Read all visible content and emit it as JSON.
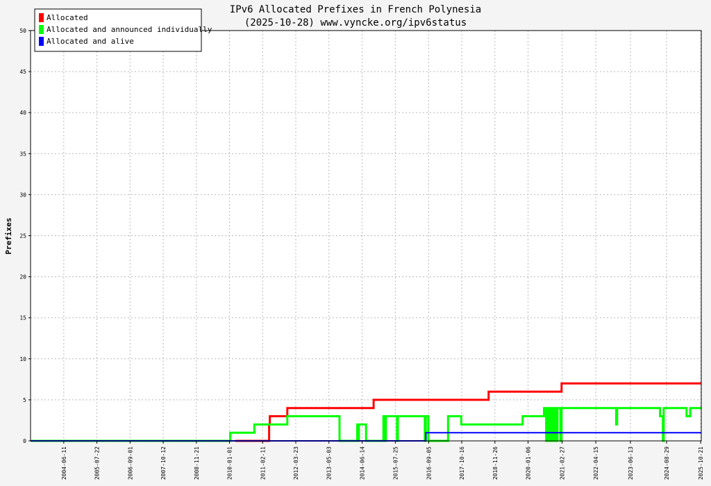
{
  "chart_data": {
    "type": "line",
    "title": "IPv6 Allocated Prefixes in French Polynesia",
    "subtitle": "(2025-10-28) www.vyncke.org/ipv6status",
    "xlabel": "",
    "ylabel": "Prefixes",
    "ylim": [
      0,
      50
    ],
    "xlim": [
      "2003-05-01",
      "2025-10-28"
    ],
    "y_ticks": [
      0,
      5,
      10,
      15,
      20,
      25,
      30,
      35,
      40,
      45,
      50
    ],
    "x_ticks": [
      "2004-06-11",
      "2005-07-22",
      "2006-09-01",
      "2007-10-12",
      "2008-11-21",
      "2010-01-01",
      "2011-02-11",
      "2012-03-23",
      "2013-05-03",
      "2014-06-14",
      "2015-07-25",
      "2016-09-05",
      "2017-10-16",
      "2018-11-26",
      "2020-01-06",
      "2021-02-27",
      "2022-04-15",
      "2023-06-13",
      "2024-08-29",
      "2025-10-21"
    ],
    "grid": true,
    "legend_position": "top-left",
    "series": [
      {
        "name": "Allocated",
        "color": "#ff0000",
        "points": [
          [
            "2010-03-15",
            0
          ],
          [
            "2011-05-01",
            0
          ],
          [
            "2011-05-01",
            2
          ],
          [
            "2011-05-10",
            2
          ],
          [
            "2011-05-10",
            3
          ],
          [
            "2011-12-10",
            3
          ],
          [
            "2011-12-10",
            4
          ],
          [
            "2014-11-01",
            4
          ],
          [
            "2014-11-01",
            5
          ],
          [
            "2018-09-10",
            5
          ],
          [
            "2018-09-10",
            6
          ],
          [
            "2021-02-20",
            6
          ],
          [
            "2021-02-20",
            7
          ],
          [
            "2025-10-28",
            7
          ]
        ]
      },
      {
        "name": "Allocated and announced individually",
        "color": "#00ff00",
        "points": [
          [
            "2003-05-01",
            0
          ],
          [
            "2010-01-10",
            0
          ],
          [
            "2010-01-10",
            1
          ],
          [
            "2010-11-01",
            1
          ],
          [
            "2010-11-01",
            2
          ],
          [
            "2011-12-10",
            2
          ],
          [
            "2011-12-10",
            3
          ],
          [
            "2013-09-10",
            3
          ],
          [
            "2013-09-10",
            0
          ],
          [
            "2014-04-15",
            0
          ],
          [
            "2014-04-15",
            2
          ],
          [
            "2014-04-25",
            2
          ],
          [
            "2014-04-25",
            0
          ],
          [
            "2014-05-05",
            0
          ],
          [
            "2014-05-05",
            2
          ],
          [
            "2014-08-01",
            2
          ],
          [
            "2014-08-01",
            0
          ],
          [
            "2015-03-01",
            0
          ],
          [
            "2015-03-01",
            3
          ],
          [
            "2015-03-20",
            3
          ],
          [
            "2015-03-20",
            0
          ],
          [
            "2015-04-01",
            0
          ],
          [
            "2015-04-01",
            3
          ],
          [
            "2015-08-15",
            3
          ],
          [
            "2015-08-15",
            0
          ],
          [
            "2015-08-25",
            0
          ],
          [
            "2015-08-25",
            3
          ],
          [
            "2016-07-20",
            3
          ],
          [
            "2016-07-20",
            0
          ],
          [
            "2016-08-01",
            0
          ],
          [
            "2016-08-01",
            3
          ],
          [
            "2016-09-01",
            3
          ],
          [
            "2016-09-01",
            0
          ],
          [
            "2017-05-01",
            0
          ],
          [
            "2017-05-01",
            3
          ],
          [
            "2017-10-10",
            3
          ],
          [
            "2017-10-10",
            2
          ],
          [
            "2019-11-01",
            2
          ],
          [
            "2019-11-01",
            3
          ],
          [
            "2020-07-20",
            3
          ],
          [
            "2020-07-20",
            4
          ],
          [
            "2020-08-15",
            4
          ],
          [
            "2020-08-15",
            0
          ],
          [
            "2020-09-01",
            0
          ],
          [
            "2020-09-01",
            4
          ],
          [
            "2020-09-20",
            4
          ],
          [
            "2020-09-20",
            0
          ],
          [
            "2020-10-10",
            0
          ],
          [
            "2020-10-10",
            4
          ],
          [
            "2020-11-01",
            4
          ],
          [
            "2020-11-01",
            0
          ],
          [
            "2020-11-15",
            0
          ],
          [
            "2020-11-15",
            4
          ],
          [
            "2020-12-10",
            4
          ],
          [
            "2020-12-10",
            0
          ],
          [
            "2021-01-01",
            0
          ],
          [
            "2021-01-01",
            4
          ],
          [
            "2021-02-05",
            4
          ],
          [
            "2021-02-05",
            0
          ],
          [
            "2021-02-20",
            0
          ],
          [
            "2021-02-20",
            4
          ],
          [
            "2022-12-20",
            4
          ],
          [
            "2022-12-20",
            2
          ],
          [
            "2023-01-01",
            2
          ],
          [
            "2023-01-01",
            4
          ],
          [
            "2024-06-10",
            4
          ],
          [
            "2024-06-10",
            3
          ],
          [
            "2024-07-15",
            3
          ],
          [
            "2024-07-15",
            0
          ],
          [
            "2024-07-25",
            0
          ],
          [
            "2024-07-25",
            4
          ],
          [
            "2025-05-01",
            4
          ],
          [
            "2025-05-01",
            3
          ],
          [
            "2025-06-15",
            3
          ],
          [
            "2025-06-15",
            4
          ],
          [
            "2025-10-28",
            4
          ]
        ]
      },
      {
        "name": "Allocated and alive",
        "color": "#0000ff",
        "points": [
          [
            "2003-05-01",
            0
          ],
          [
            "2016-08-01",
            0
          ],
          [
            "2016-08-01",
            1
          ],
          [
            "2025-10-28",
            1
          ]
        ]
      }
    ]
  }
}
